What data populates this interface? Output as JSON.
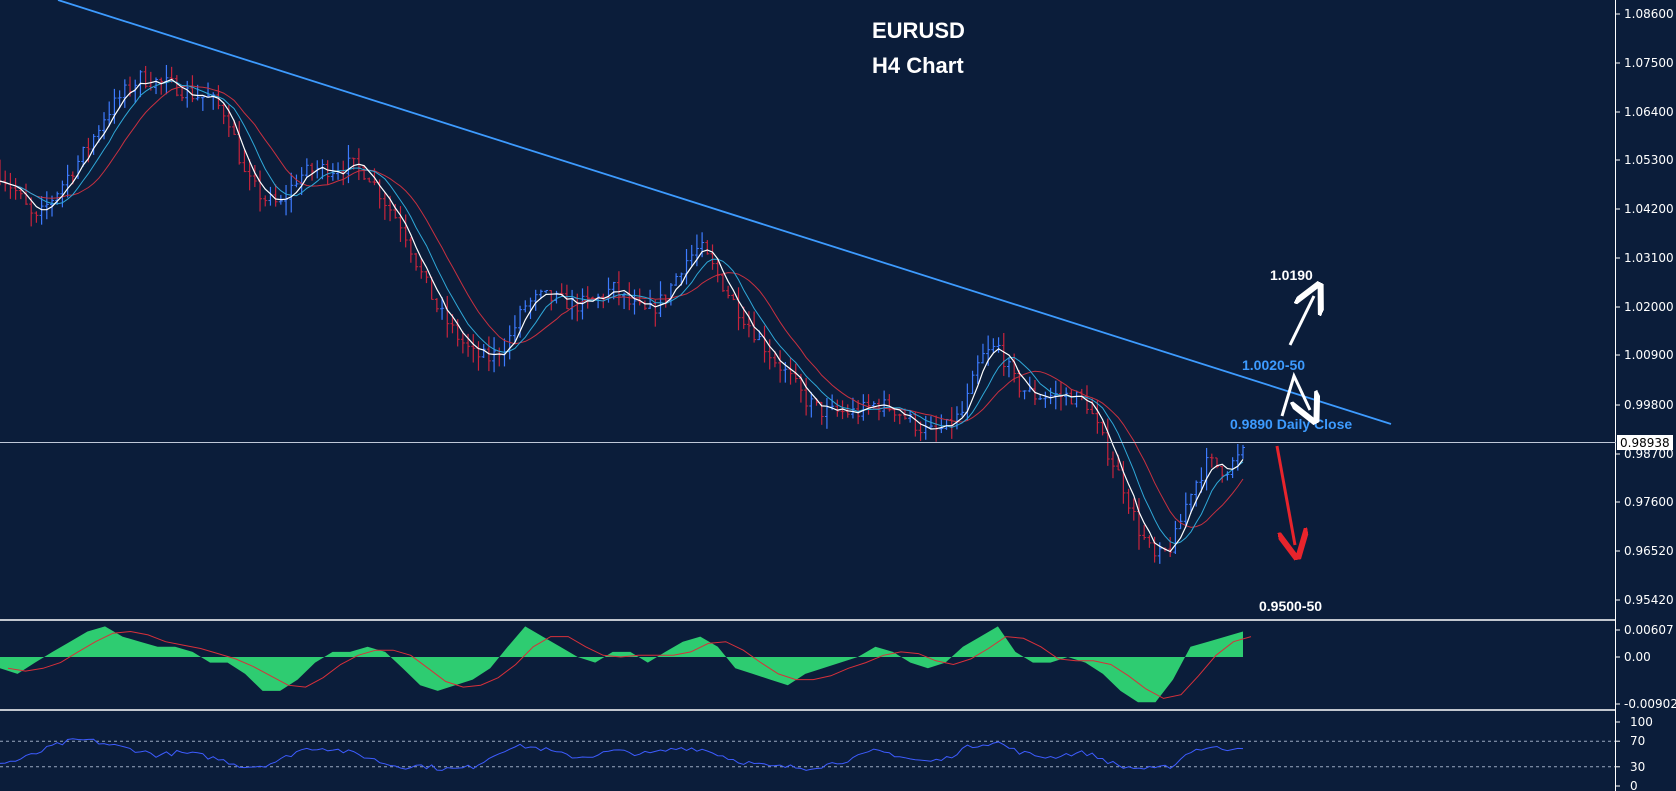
{
  "chart_data": [
    {
      "type": "candlestick",
      "panel": "price",
      "title": "EURUSD",
      "subtitle": "H4 Chart",
      "ylim": [
        0.9485,
        1.0905
      ],
      "yticks": [
        "1.08600",
        "1.07500",
        "1.06400",
        "1.05300",
        "1.04200",
        "1.03100",
        "1.02000",
        "1.00900",
        "0.99800",
        "0.98700",
        "0.97600",
        "0.96520",
        "0.95420"
      ],
      "current_price": "0.98938",
      "price_path": [
        1.052,
        1.047,
        1.04,
        1.046,
        1.052,
        1.058,
        1.066,
        1.071,
        1.075,
        1.074,
        1.073,
        1.071,
        1.07,
        1.066,
        1.051,
        1.046,
        1.044,
        1.051,
        1.053,
        1.053,
        1.054,
        1.052,
        1.045,
        1.039,
        1.028,
        1.019,
        1.013,
        1.008,
        1.007,
        1.011,
        1.02,
        1.022,
        1.021,
        1.02,
        1.021,
        1.024,
        1.02,
        1.018,
        1.022,
        1.03,
        1.034,
        1.027,
        1.02,
        1.014,
        1.008,
        1.003,
        0.997,
        0.994,
        0.994,
        0.994,
        0.996,
        0.995,
        0.992,
        0.989,
        0.99,
        0.994,
        1.007,
        1.01,
        1.001,
        0.998,
        0.998,
        0.998,
        0.997,
        0.987,
        0.978,
        0.966,
        0.958,
        0.962,
        0.975,
        0.982,
        0.98,
        0.984
      ],
      "trendline": {
        "label": "downtrend"
      },
      "annotations": [
        {
          "text": "1.0190",
          "color": "#ffffff"
        },
        {
          "text": "1.0020-50",
          "color": "#3d9bff"
        },
        {
          "text": "0.9890 Daily Close",
          "color": "#3d9bff"
        },
        {
          "text": "0.9500-50",
          "color": "#ffffff"
        }
      ],
      "colors": {
        "background": "#0b1d3a",
        "up": "#3d7bff",
        "down": "#c8243c",
        "trendline": "#3d9bff",
        "ma_fast": "#ffffff",
        "ma_mid": "#2fa8d8",
        "ma_slow": "#c83040",
        "arrow_up": "#ffffff",
        "arrow_down": "#e8242c"
      }
    },
    {
      "type": "area",
      "panel": "MACD",
      "ylim": [
        -0.009027,
        0.00607
      ],
      "yticks": [
        "0.00607",
        "0.00",
        "-0.009027"
      ],
      "values": [
        -0.002,
        -0.003,
        -0.001,
        0.001,
        0.003,
        0.005,
        0.006,
        0.004,
        0.003,
        0.002,
        0.002,
        0.001,
        -0.001,
        -0.001,
        -0.003,
        -0.006,
        -0.006,
        -0.004,
        -0.001,
        0.001,
        0.001,
        0.002,
        0.001,
        -0.002,
        -0.005,
        -0.006,
        -0.005,
        -0.004,
        -0.002,
        0.002,
        0.006,
        0.004,
        0.002,
        0.0,
        -0.001,
        0.001,
        0.001,
        -0.001,
        0.001,
        0.003,
        0.004,
        0.002,
        -0.002,
        -0.003,
        -0.004,
        -0.005,
        -0.003,
        -0.002,
        -0.001,
        0.0,
        0.002,
        0.001,
        -0.001,
        -0.002,
        -0.001,
        0.002,
        0.004,
        0.006,
        0.001,
        -0.001,
        -0.001,
        0.0,
        -0.001,
        -0.003,
        -0.006,
        -0.008,
        -0.008,
        -0.004,
        0.002,
        0.003,
        0.004,
        0.005
      ],
      "colors": {
        "histogram": "#2ecc71",
        "signal": "#d8303a"
      }
    },
    {
      "type": "line",
      "panel": "RSI",
      "ylim": [
        0,
        100
      ],
      "yticks": [
        "100",
        "70",
        "30",
        "0"
      ],
      "levels": [
        70,
        30
      ],
      "values": [
        35,
        40,
        50,
        62,
        70,
        72,
        66,
        60,
        55,
        48,
        52,
        50,
        45,
        38,
        30,
        32,
        40,
        55,
        60,
        58,
        52,
        45,
        35,
        30,
        32,
        28,
        26,
        30,
        45,
        60,
        62,
        58,
        50,
        45,
        48,
        55,
        52,
        50,
        55,
        60,
        58,
        50,
        40,
        35,
        30,
        30,
        28,
        32,
        38,
        45,
        55,
        50,
        42,
        38,
        42,
        58,
        66,
        68,
        55,
        48,
        45,
        50,
        52,
        42,
        30,
        28,
        26,
        32,
        55,
        60,
        58,
        62
      ],
      "colors": {
        "line": "#3d5cff",
        "level": "#9aa8bf"
      }
    }
  ]
}
